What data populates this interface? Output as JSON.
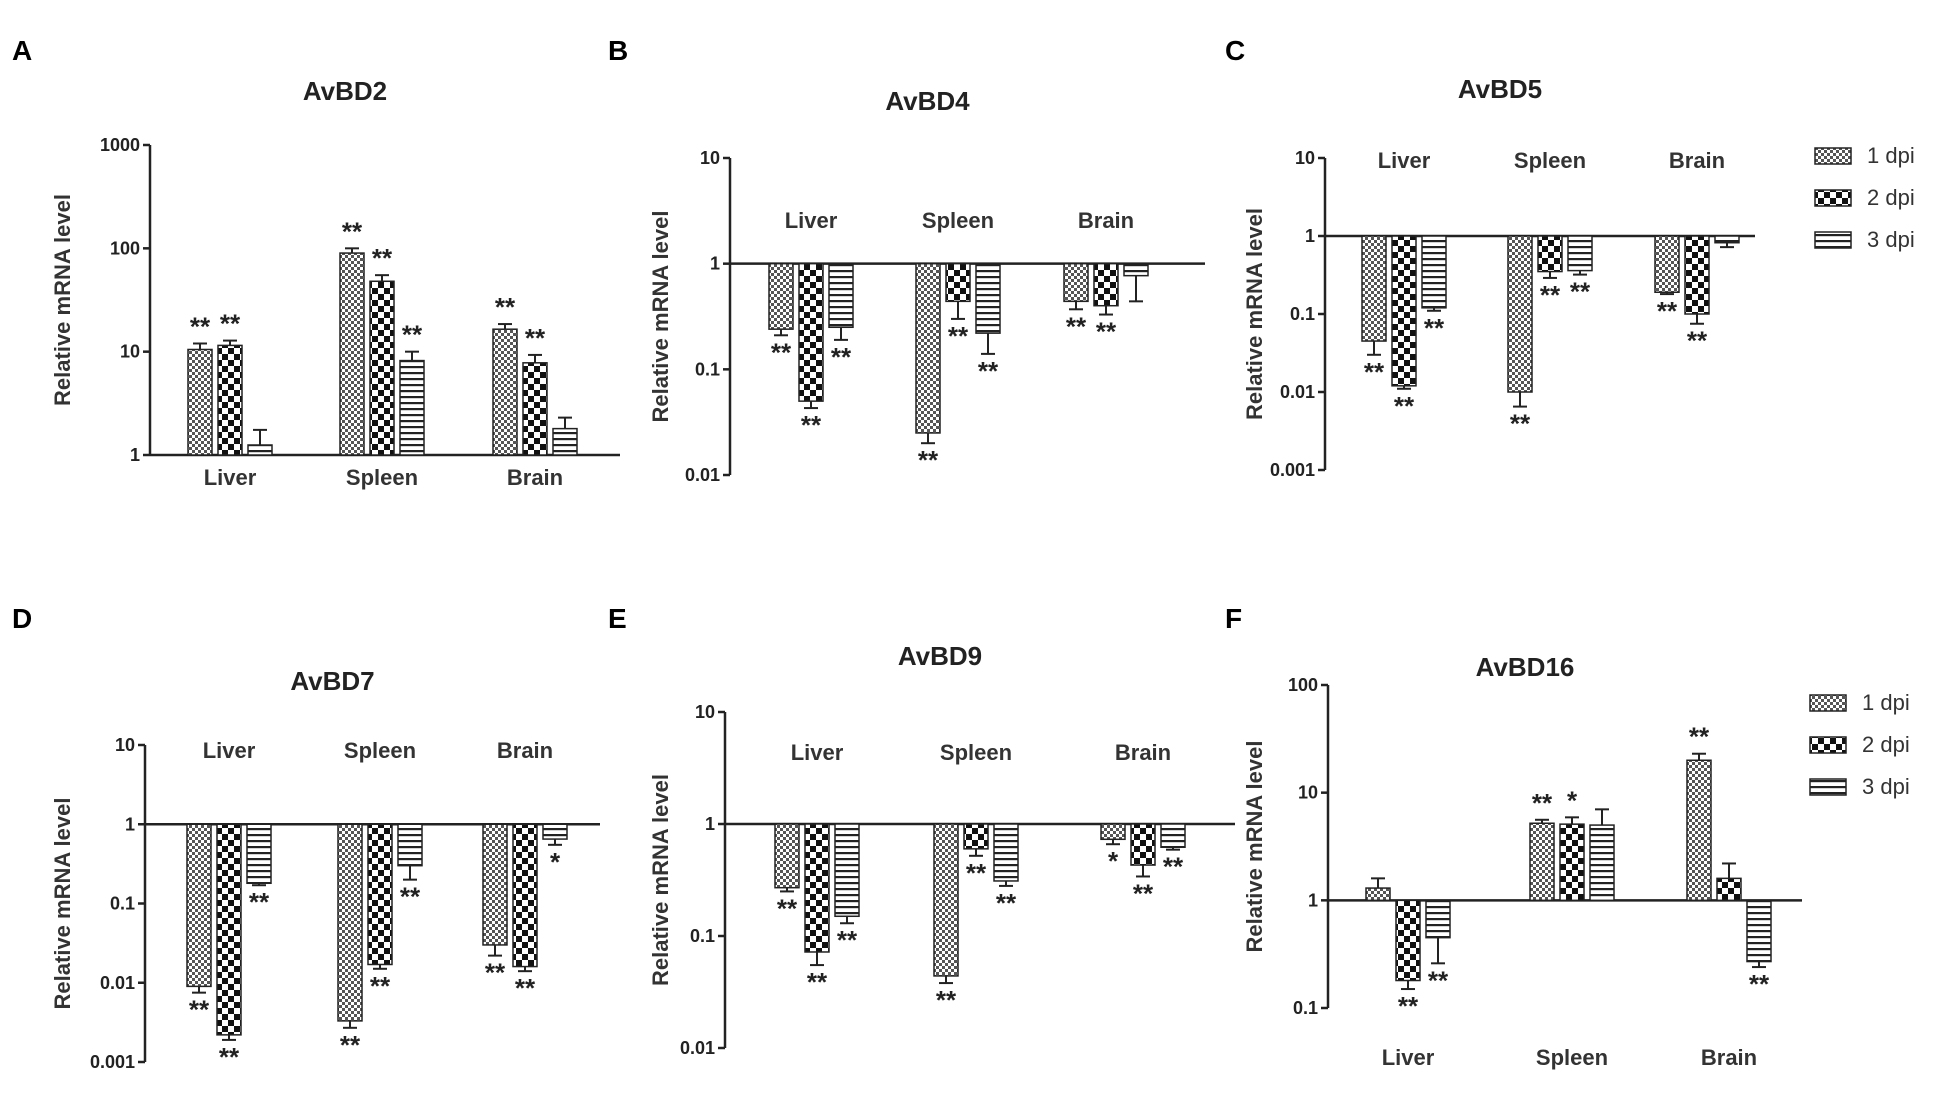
{
  "figure": {
    "legend_entries": [
      "1 dpi",
      "2 dpi",
      "3 dpi"
    ]
  },
  "chart_data": [
    {
      "panel": "A",
      "type": "bar",
      "title": "AvBD2",
      "ylabel": "Relative mRNA level",
      "xlabel": "",
      "yscale": "log",
      "ylim": [
        1,
        1000
      ],
      "yticks": [
        1,
        10,
        100,
        1000
      ],
      "ytick_labels": [
        "1",
        "10",
        "100",
        "1000"
      ],
      "baseline": 1,
      "category_labels_position": "bottom",
      "legend": false,
      "categories": [
        "Liver",
        "Spleen",
        "Brain"
      ],
      "series": [
        {
          "name": "1 dpi",
          "values": [
            10.5,
            90,
            16.5
          ],
          "errors": [
            12,
            100,
            18.5
          ],
          "sig": [
            "**",
            "**",
            "**"
          ]
        },
        {
          "name": "2 dpi",
          "values": [
            11.5,
            48,
            7.8
          ],
          "errors": [
            12.8,
            55,
            9.3
          ],
          "sig": [
            "**",
            "**",
            "**"
          ]
        },
        {
          "name": "3 dpi",
          "values": [
            1.25,
            8.2,
            1.8
          ],
          "errors": [
            1.75,
            10,
            2.3
          ],
          "sig": [
            "",
            "**",
            ""
          ]
        }
      ]
    },
    {
      "panel": "B",
      "type": "bar",
      "title": "AvBD4",
      "ylabel": "Relative mRNA level",
      "xlabel": "",
      "yscale": "log",
      "ylim": [
        0.01,
        10
      ],
      "yticks": [
        0.01,
        0.1,
        1,
        10
      ],
      "ytick_labels": [
        "0.01",
        "0.1",
        "1",
        "10"
      ],
      "baseline": 1,
      "category_labels_position": "top",
      "legend": false,
      "categories": [
        "Liver",
        "Spleen",
        "Brain"
      ],
      "series": [
        {
          "name": "1 dpi",
          "values": [
            0.24,
            0.025,
            0.44
          ],
          "errors": [
            0.21,
            0.02,
            0.37
          ],
          "sig": [
            "**",
            "**",
            "**"
          ]
        },
        {
          "name": "2 dpi",
          "values": [
            0.05,
            0.44,
            0.4
          ],
          "errors": [
            0.043,
            0.3,
            0.33
          ],
          "sig": [
            "**",
            "**",
            "**"
          ]
        },
        {
          "name": "3 dpi",
          "values": [
            0.25,
            0.22,
            0.77
          ],
          "errors": [
            0.19,
            0.14,
            0.44
          ],
          "sig": [
            "**",
            "**",
            ""
          ]
        }
      ]
    },
    {
      "panel": "C",
      "type": "bar",
      "title": "AvBD5",
      "ylabel": "Relative mRNA level",
      "xlabel": "",
      "yscale": "log",
      "ylim": [
        0.001,
        10
      ],
      "yticks": [
        0.001,
        0.01,
        0.1,
        1,
        10
      ],
      "ytick_labels": [
        "0.001",
        "0.01",
        "0.1",
        "1",
        "10"
      ],
      "baseline": 1,
      "category_labels_position": "top",
      "legend": true,
      "categories": [
        "Liver",
        "Spleen",
        "Brain"
      ],
      "series": [
        {
          "name": "1 dpi",
          "values": [
            0.045,
            0.01,
            0.19
          ],
          "errors": [
            0.03,
            0.0065,
            0.18
          ],
          "sig": [
            "**",
            "**",
            "**"
          ]
        },
        {
          "name": "2 dpi",
          "values": [
            0.012,
            0.35,
            0.1
          ],
          "errors": [
            0.011,
            0.29,
            0.075
          ],
          "sig": [
            "**",
            "**",
            "**"
          ]
        },
        {
          "name": "3 dpi",
          "values": [
            0.12,
            0.36,
            0.82
          ],
          "errors": [
            0.11,
            0.32,
            0.72
          ],
          "sig": [
            "**",
            "**",
            ""
          ]
        }
      ]
    },
    {
      "panel": "D",
      "type": "bar",
      "title": "AvBD7",
      "ylabel": "Relative mRNA level",
      "xlabel": "",
      "yscale": "log",
      "ylim": [
        0.001,
        10
      ],
      "yticks": [
        0.001,
        0.01,
        0.1,
        1,
        10
      ],
      "ytick_labels": [
        "0.001",
        "0.01",
        "0.1",
        "1",
        "10"
      ],
      "baseline": 1,
      "category_labels_position": "top",
      "legend": false,
      "categories": [
        "Liver",
        "Spleen",
        "Brain"
      ],
      "series": [
        {
          "name": "1 dpi",
          "values": [
            0.009,
            0.0033,
            0.03
          ],
          "errors": [
            0.0075,
            0.0027,
            0.022
          ],
          "sig": [
            "**",
            "**",
            "**"
          ]
        },
        {
          "name": "2 dpi",
          "values": [
            0.0022,
            0.017,
            0.016
          ],
          "errors": [
            0.0019,
            0.015,
            0.014
          ],
          "sig": [
            "**",
            "**",
            "**"
          ]
        },
        {
          "name": "3 dpi",
          "values": [
            0.18,
            0.3,
            0.65
          ],
          "errors": [
            0.17,
            0.2,
            0.55
          ],
          "sig": [
            "**",
            "**",
            "*"
          ]
        }
      ]
    },
    {
      "panel": "E",
      "type": "bar",
      "title": "AvBD9",
      "ylabel": "Relative mRNA level",
      "xlabel": "",
      "yscale": "log",
      "ylim": [
        0.01,
        10
      ],
      "yticks": [
        0.01,
        0.1,
        1,
        10
      ],
      "ytick_labels": [
        "0.01",
        "0.1",
        "1",
        "10"
      ],
      "baseline": 1,
      "category_labels_position": "top",
      "legend": false,
      "categories": [
        "Liver",
        "Spleen",
        "Brain"
      ],
      "series": [
        {
          "name": "1 dpi",
          "values": [
            0.27,
            0.044,
            0.73
          ],
          "errors": [
            0.25,
            0.038,
            0.66
          ],
          "sig": [
            "**",
            "**",
            "*"
          ]
        },
        {
          "name": "2 dpi",
          "values": [
            0.072,
            0.6,
            0.43
          ],
          "errors": [
            0.055,
            0.52,
            0.34
          ],
          "sig": [
            "**",
            "**",
            "**"
          ]
        },
        {
          "name": "3 dpi",
          "values": [
            0.15,
            0.31,
            0.62
          ],
          "errors": [
            0.13,
            0.28,
            0.59
          ],
          "sig": [
            "**",
            "**",
            "**"
          ]
        }
      ]
    },
    {
      "panel": "F",
      "type": "bar",
      "title": "AvBD16",
      "ylabel": "Relative mRNA level",
      "xlabel": "",
      "yscale": "log",
      "ylim": [
        0.1,
        100
      ],
      "yticks": [
        0.1,
        1,
        10,
        100
      ],
      "ytick_labels": [
        "0.1",
        "1",
        "10",
        "100"
      ],
      "baseline": 1,
      "category_labels_position": "bottom",
      "legend": true,
      "categories": [
        "Liver",
        "Spleen",
        "Brain"
      ],
      "series": [
        {
          "name": "1 dpi",
          "values": [
            1.3,
            5.2,
            20
          ],
          "errors": [
            1.6,
            5.6,
            23
          ],
          "sig": [
            "",
            "**",
            "**"
          ]
        },
        {
          "name": "2 dpi",
          "values": [
            0.18,
            5.1,
            1.6
          ],
          "errors": [
            0.15,
            5.9,
            2.2
          ],
          "sig": [
            "**",
            "*",
            ""
          ]
        },
        {
          "name": "3 dpi",
          "values": [
            0.45,
            5,
            0.27
          ],
          "errors": [
            0.26,
            7,
            0.24
          ],
          "sig": [
            "**",
            "",
            "**"
          ]
        }
      ]
    }
  ]
}
